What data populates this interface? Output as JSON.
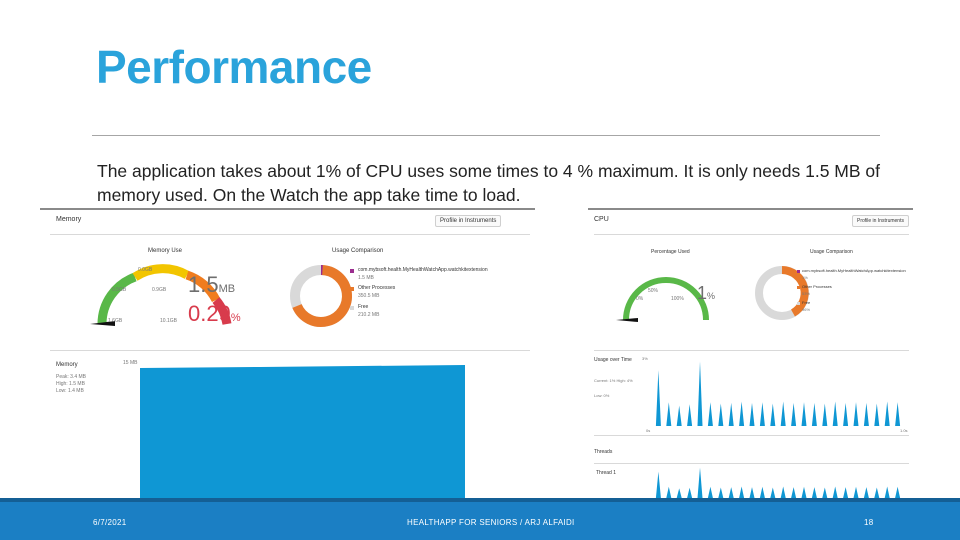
{
  "slide": {
    "title": "Performance",
    "body": "The application takes about 1% of CPU uses some times to 4 % maximum. It is only needs 1.5 MB of memory used. On the Watch the app take time to load."
  },
  "memory_panel": {
    "header": "Memory",
    "profile_button": "Profile in Instruments",
    "gauge_title": "Memory Use",
    "value_mb": "1.5",
    "value_mb_unit": "MB",
    "value_pct": "0.29",
    "value_pct_unit": "%",
    "gauge_ticks": [
      "0.0GB",
      "0.5GB",
      "0.9GB",
      "1.6GB",
      "10.1GB"
    ],
    "comparison_title": "Usage Comparison",
    "legend": [
      {
        "label": "com.mybsoft.health.MyHealthWatchApp.watchkitextension",
        "value": "1.5 MB",
        "color": "#9b2d8f"
      },
      {
        "label": "Other Processes",
        "value": "350.5 MB",
        "color": "#e8792a"
      },
      {
        "label": "Free",
        "value": "210.2 MB",
        "color": "#d9d9d9"
      }
    ],
    "side_label": "Memory",
    "side_stats": [
      "Peak: 3.4 MB",
      "High: 1.5 MB",
      "Low: 1.4 MB"
    ],
    "axis_top": "15 MB",
    "chart_color": "#0f97d4"
  },
  "cpu_panel": {
    "header": "CPU",
    "profile_button": "Profile in Instruments",
    "gauge_title": "Percentage Used",
    "value": "1",
    "value_unit": "%",
    "gauge_ticks": [
      "0%",
      "50%",
      "100%",
      "150%",
      "200%"
    ],
    "comparison_title": "Usage Comparison",
    "legend": [
      {
        "label": "com.mybsoft.health.MyHealthWatchApp.watchkitextension",
        "value": "1%",
        "color": "#9b2d8f"
      },
      {
        "label": "Other Processes",
        "value": "53%",
        "color": "#e8792a"
      },
      {
        "label": "Free",
        "value": "96%",
        "color": "#d9d9d9"
      }
    ],
    "side_label": "Usage over Time",
    "side_stats": [
      "Current: 1% High: 4%",
      "Low: 0%"
    ],
    "axis_top": "3%",
    "axis_left": "0s",
    "axis_right": "1.0s",
    "threads_label": "Threads",
    "thread_name": "Thread 1",
    "chart_color": "#0f97d4",
    "spikes": [
      0.82,
      0.35,
      0.3,
      0.32,
      0.95,
      0.35,
      0.33,
      0.34,
      0.36,
      0.34,
      0.35,
      0.33,
      0.36,
      0.34,
      0.35,
      0.34,
      0.33,
      0.36,
      0.34,
      0.35,
      0.34,
      0.33,
      0.36,
      0.35
    ]
  },
  "footer": {
    "date": "6/7/2021",
    "center": "HEALTHAPP FOR SENIORS / ARJ ALFAIDI",
    "page": "18"
  }
}
